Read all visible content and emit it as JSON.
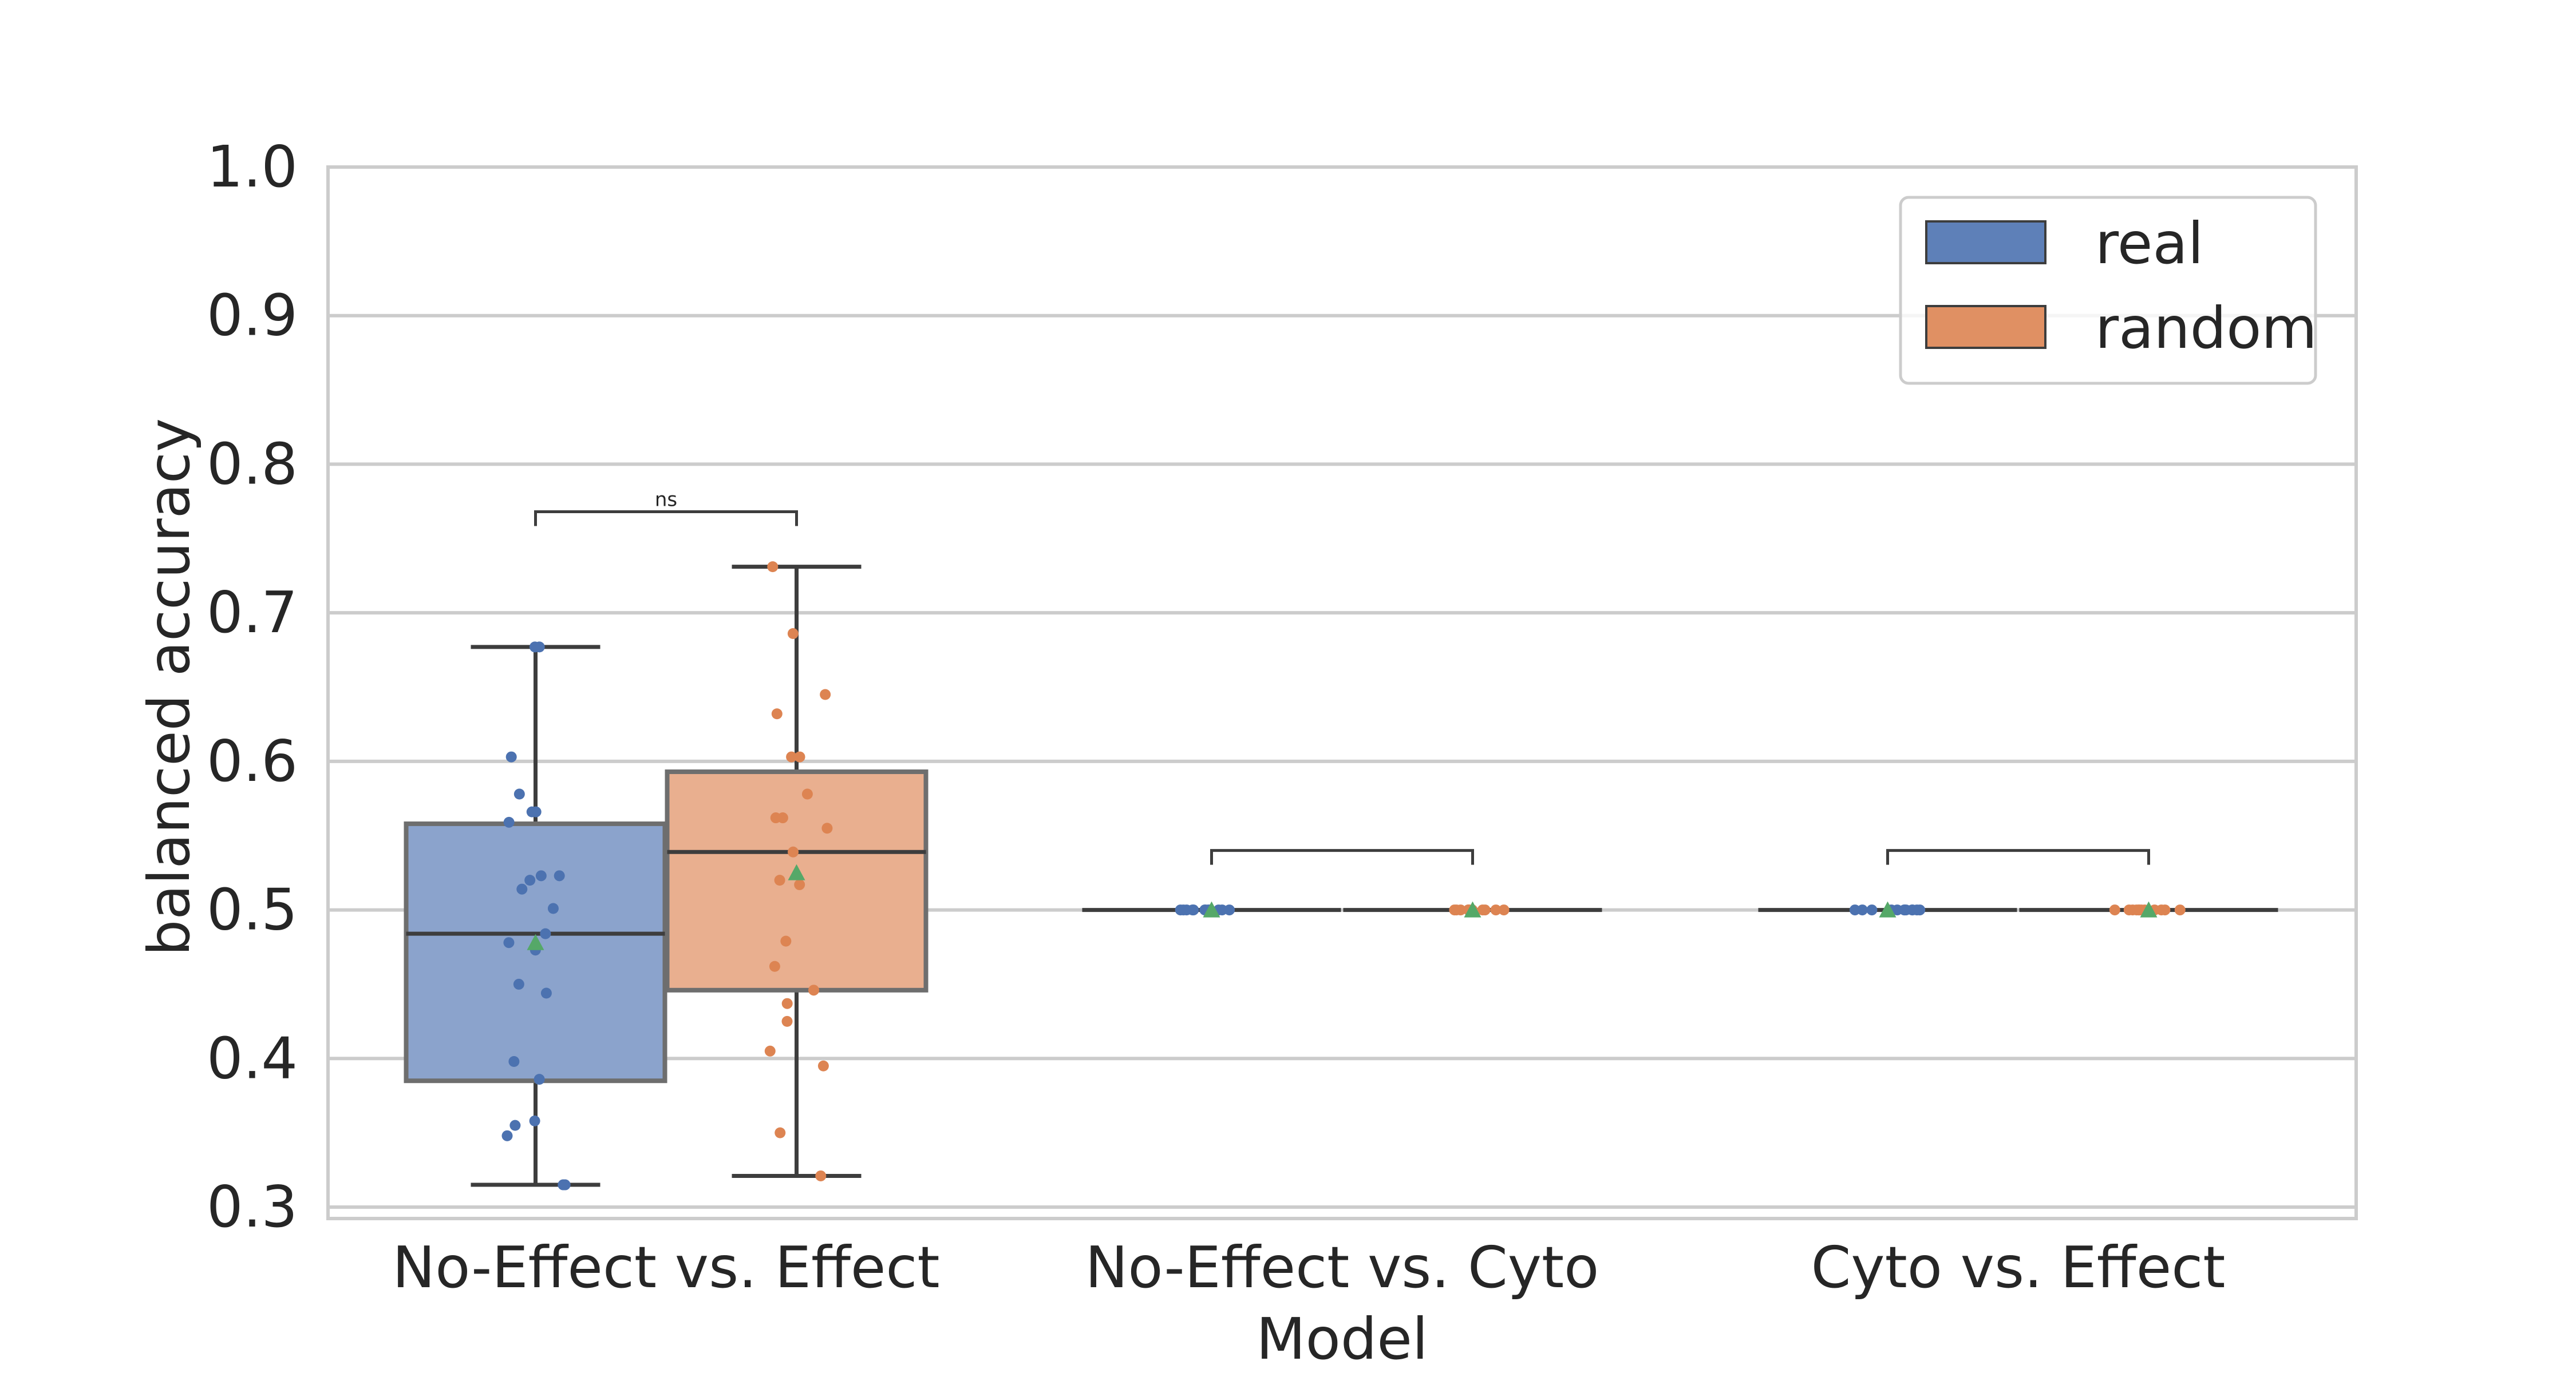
{
  "chart_data": {
    "type": "box",
    "xlabel": "Model",
    "ylabel": "balanced accuracy",
    "ylim": [
      0.3,
      1.0
    ],
    "yticks": [
      0.3,
      0.4,
      0.5,
      0.6,
      0.7,
      0.8,
      0.9,
      1.0
    ],
    "ytick_labels": [
      "0.3",
      "0.4",
      "0.5",
      "0.6",
      "0.7",
      "0.8",
      "0.9",
      "1.0"
    ],
    "grid": true,
    "legend_position": "top-right",
    "categories": [
      "No-Effect vs. Effect",
      "No-Effect vs. Cyto",
      "Cyto vs. Effect"
    ],
    "series": [
      {
        "name": "real",
        "color": "#4c72b0",
        "boxes": [
          {
            "min": 0.315,
            "q1": 0.385,
            "median": 0.484,
            "q3": 0.558,
            "max": 0.677,
            "mean": 0.478,
            "points": [
              0.677,
              0.677,
              0.603,
              0.578,
              0.566,
              0.566,
              0.559,
              0.523,
              0.523,
              0.52,
              0.514,
              0.501,
              0.484,
              0.478,
              0.473,
              0.45,
              0.444,
              0.398,
              0.386,
              0.358,
              0.355,
              0.348,
              0.315,
              0.315
            ]
          },
          {
            "min": 0.5,
            "q1": 0.5,
            "median": 0.5,
            "q3": 0.5,
            "max": 0.5,
            "mean": 0.5,
            "points": [
              0.5,
              0.5,
              0.5,
              0.5,
              0.5,
              0.5,
              0.5,
              0.5,
              0.5,
              0.5,
              0.5,
              0.5
            ]
          },
          {
            "min": 0.5,
            "q1": 0.5,
            "median": 0.5,
            "q3": 0.5,
            "max": 0.5,
            "mean": 0.5,
            "points": [
              0.5,
              0.5,
              0.5,
              0.5,
              0.5,
              0.5,
              0.5,
              0.5,
              0.5,
              0.5,
              0.5,
              0.5
            ]
          }
        ]
      },
      {
        "name": "random",
        "color": "#dd8452",
        "boxes": [
          {
            "min": 0.321,
            "q1": 0.446,
            "median": 0.539,
            "q3": 0.593,
            "max": 0.731,
            "mean": 0.525,
            "points": [
              0.731,
              0.686,
              0.645,
              0.632,
              0.603,
              0.603,
              0.578,
              0.562,
              0.562,
              0.555,
              0.539,
              0.52,
              0.517,
              0.479,
              0.462,
              0.446,
              0.437,
              0.425,
              0.405,
              0.395,
              0.35,
              0.321
            ]
          },
          {
            "min": 0.5,
            "q1": 0.5,
            "median": 0.5,
            "q3": 0.5,
            "max": 0.5,
            "mean": 0.5,
            "points": [
              0.5,
              0.5,
              0.5,
              0.5,
              0.5,
              0.5,
              0.5,
              0.5,
              0.5,
              0.5,
              0.5,
              0.5
            ]
          },
          {
            "min": 0.5,
            "q1": 0.5,
            "median": 0.5,
            "q3": 0.5,
            "max": 0.5,
            "mean": 0.5,
            "points": [
              0.5,
              0.5,
              0.5,
              0.5,
              0.5,
              0.5,
              0.5,
              0.5,
              0.5,
              0.5,
              0.5,
              0.5
            ]
          }
        ]
      }
    ],
    "annotations": [
      {
        "category": "No-Effect vs. Effect",
        "label": "ns",
        "y": 0.768
      },
      {
        "category": "No-Effect vs. Cyto",
        "label": "",
        "y": 0.54
      },
      {
        "category": "Cyto vs. Effect",
        "label": "",
        "y": 0.54
      }
    ],
    "mean_marker_color": "#55a868"
  }
}
